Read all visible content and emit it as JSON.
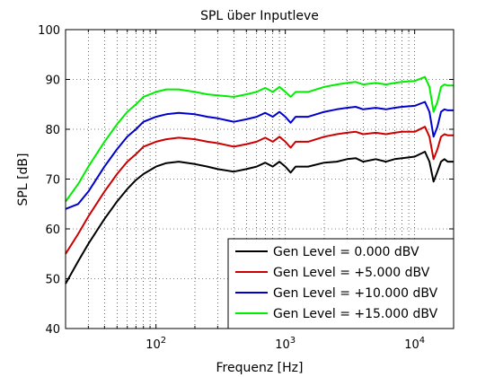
{
  "chart_data": {
    "type": "line",
    "title": "SPL über Inputleve",
    "xlabel": "Frequenz [Hz]",
    "ylabel": "SPL [dB]",
    "x_scale": "log",
    "xlim": [
      20,
      20000
    ],
    "ylim": [
      40,
      100
    ],
    "y_ticks": [
      40,
      50,
      60,
      70,
      80,
      90,
      100
    ],
    "x_ticks": [
      {
        "value": 100,
        "base": "10",
        "exp": "2"
      },
      {
        "value": 1000,
        "base": "10",
        "exp": "3"
      },
      {
        "value": 10000,
        "base": "10",
        "exp": "4"
      }
    ],
    "grid": true,
    "legend_position": "bottom-right",
    "x": [
      20,
      25,
      30,
      40,
      50,
      60,
      70,
      80,
      100,
      120,
      150,
      200,
      250,
      300,
      400,
      500,
      600,
      700,
      800,
      900,
      1000,
      1100,
      1200,
      1500,
      2000,
      2500,
      3000,
      3500,
      4000,
      5000,
      6000,
      7000,
      8000,
      10000,
      12000,
      13000,
      14000,
      15000,
      16000,
      17000,
      18000,
      20000
    ],
    "series": [
      {
        "name": "Gen Level = 0.000 dBV",
        "color": "#000000",
        "values": [
          49,
          53.5,
          57,
          62,
          65.5,
          68,
          69.8,
          71,
          72.5,
          73.2,
          73.5,
          73,
          72.5,
          72,
          71.5,
          72,
          72.5,
          73.3,
          72.5,
          73.5,
          72.5,
          71.3,
          72.5,
          72.5,
          73.3,
          73.5,
          74,
          74.2,
          73.5,
          74,
          73.5,
          74,
          74.2,
          74.5,
          75.5,
          73.5,
          69.5,
          71.5,
          73.5,
          74,
          73.5,
          73.5
        ]
      },
      {
        "name": "Gen Level = +5.000 dBV",
        "color": "#cc0000",
        "values": [
          55,
          59,
          62.5,
          67.5,
          71,
          73.5,
          75,
          76.5,
          77.5,
          78,
          78.3,
          78,
          77.5,
          77.2,
          76.5,
          77,
          77.5,
          78.3,
          77.5,
          78.5,
          77.5,
          76.3,
          77.5,
          77.5,
          78.5,
          79,
          79.3,
          79.5,
          79,
          79.3,
          79,
          79.3,
          79.5,
          79.5,
          80.5,
          78.5,
          74,
          76,
          78.5,
          79,
          78.8,
          78.8
        ]
      },
      {
        "name": "Gen Level = +10.000 dBV",
        "color": "#0000cc",
        "values": [
          64,
          65,
          67.5,
          72.5,
          76,
          78.5,
          80,
          81.5,
          82.5,
          83,
          83.3,
          83,
          82.5,
          82.2,
          81.5,
          82,
          82.5,
          83.3,
          82.5,
          83.5,
          82.5,
          81.3,
          82.5,
          82.5,
          83.5,
          84,
          84.3,
          84.5,
          84,
          84.3,
          84,
          84.3,
          84.5,
          84.7,
          85.5,
          83.5,
          78.5,
          80.5,
          83.5,
          84,
          83.8,
          83.8
        ]
      },
      {
        "name": "Gen Level = +15.000 dBV",
        "color": "#00ee00",
        "values": [
          65.5,
          69,
          72.5,
          77.5,
          81,
          83.5,
          85,
          86.5,
          87.5,
          88,
          88,
          87.5,
          87,
          86.8,
          86.5,
          87,
          87.5,
          88.3,
          87.5,
          88.5,
          87.5,
          86.5,
          87.5,
          87.5,
          88.5,
          89,
          89.3,
          89.5,
          89,
          89.3,
          89,
          89.3,
          89.5,
          89.7,
          90.5,
          88.5,
          83.5,
          85.5,
          88.5,
          89,
          88.8,
          88.8
        ]
      }
    ]
  }
}
